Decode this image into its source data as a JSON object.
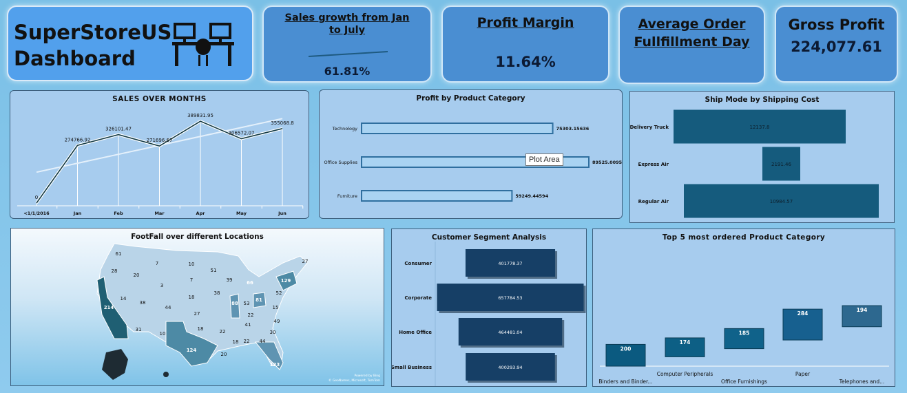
{
  "header": {
    "title_line1": "SuperStoreUS",
    "title_line2": "Dashboard"
  },
  "kpis": {
    "sales_growth": {
      "title": "Sales growth from Jan to July",
      "value": "61.81%"
    },
    "profit_margin": {
      "title": "Profit Margin",
      "value": "11.64%"
    },
    "avg_fulfillment": {
      "title": "Average Order Fullfillment Day"
    },
    "gross_profit": {
      "title": "Gross Profit",
      "value": "224,077.61"
    }
  },
  "sales_over_months": {
    "title": "SALES OVER MONTHS",
    "chart_data": {
      "type": "line",
      "categories": [
        "<1/1/2016",
        "Jan",
        "Feb",
        "Mar",
        "Apr",
        "May",
        "Jun"
      ],
      "values": [
        0,
        274766.92,
        326101.47,
        271696.67,
        389831.95,
        306572.07,
        355068.8
      ],
      "labels": [
        "0",
        "274766.92",
        "326101.47",
        "271696.67",
        "389831.95",
        "306572.07",
        "355068.8"
      ],
      "trendline": true
    }
  },
  "profit_by_category": {
    "title": "Profit by Product Category",
    "tooltip": "Plot Area",
    "chart_data": {
      "type": "bar",
      "categories": [
        "Technology",
        "Office Supplies",
        "Furniture"
      ],
      "values": [
        75303.15636,
        89525.00954,
        59249.44594
      ],
      "labels": [
        "75303.15636",
        "89525.00954",
        "59249.44594"
      ]
    }
  },
  "ship_mode": {
    "title": "Ship Mode by Shipping Cost",
    "chart_data": {
      "type": "bar",
      "categories": [
        "Delivery Truck",
        "Express Air",
        "Regular Air"
      ],
      "values": [
        12137.8,
        2191.46,
        10984.57
      ],
      "labels": [
        "12137.8",
        "2191.46",
        "10984.57"
      ]
    }
  },
  "footfall_map": {
    "title": "FootFall over different Locations",
    "states": [
      "61",
      "28",
      "20",
      "7",
      "10",
      "3",
      "7",
      "14",
      "38",
      "18",
      "44",
      "27",
      "214",
      "31",
      "10",
      "18",
      "124",
      "22",
      "20",
      "18",
      "22",
      "39",
      "38",
      "51",
      "66",
      "88",
      "53",
      "81",
      "52",
      "129",
      "27",
      "15",
      "22",
      "41",
      "49",
      "30",
      "44",
      "123"
    ],
    "credit1": "Powered by Bing",
    "credit2": "© GeoNames, Microsoft, TomTom"
  },
  "customer_segment": {
    "title": "Customer Segment Analysis",
    "chart_data": {
      "type": "bar",
      "categories": [
        "Consumer",
        "Corporate",
        "Home Office",
        "Small Business"
      ],
      "values": [
        401778.37,
        657784.53,
        464481.04,
        400293.94
      ],
      "labels": [
        "401778.37",
        "657784.53",
        "464481.04",
        "400293.94"
      ]
    }
  },
  "top5": {
    "title": "Top 5 most ordered Product Category",
    "chart_data": {
      "type": "bar",
      "categories": [
        "Binders and Binder...",
        "Computer Peripherals",
        "Office Furnishings",
        "Paper",
        "Telephones and..."
      ],
      "values": [
        200,
        174,
        185,
        284,
        194
      ],
      "labels": [
        "200",
        "174",
        "185",
        "284",
        "194"
      ]
    }
  }
}
